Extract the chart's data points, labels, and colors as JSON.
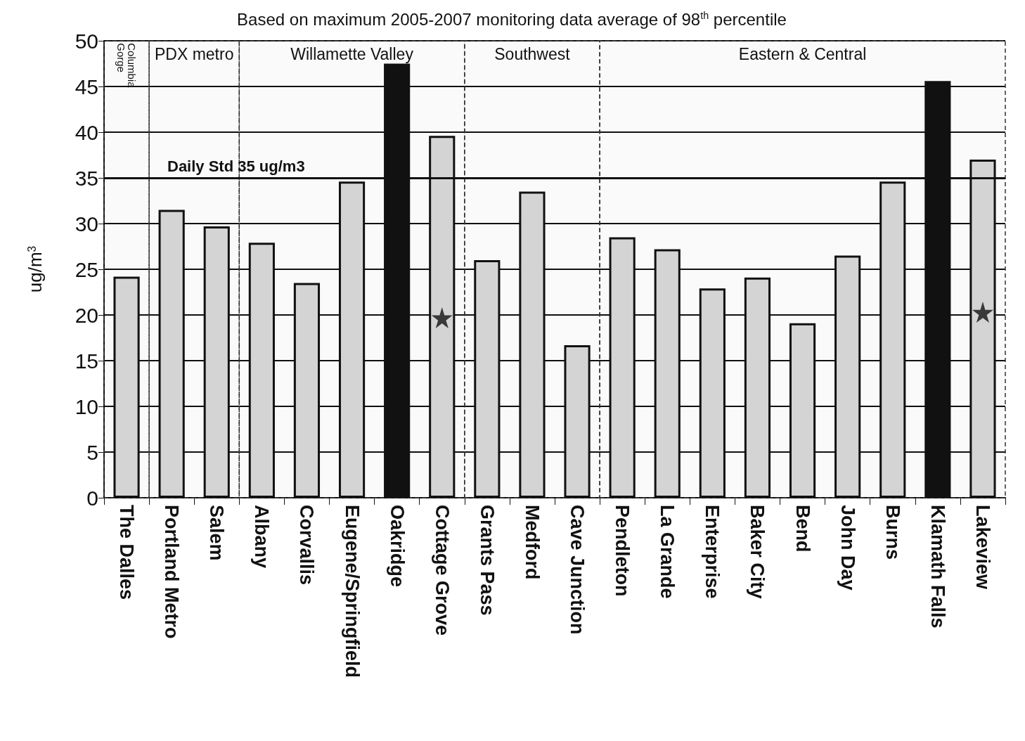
{
  "chart_data": {
    "type": "bar",
    "title": "Based on maximum 2005-2007 monitoring data average of 98$^{th}$ percentile",
    "ylabel": "ug/m$^{3}$",
    "categories": [
      "The Dalles",
      "Portland Metro",
      "Salem",
      "Albany",
      "Corvallis",
      "Eugene/Springfield",
      "Oakridge",
      "Cottage Grove",
      "Grants Pass",
      "Medford",
      "Cave Junction",
      "Pendleton",
      "La Grande",
      "Enterprise",
      "Baker City",
      "Bend",
      "John Day",
      "Burns",
      "Klamath Falls",
      "Lakeview"
    ],
    "series": [
      {
        "values": [
          24.2,
          31.5,
          29.7,
          27.9,
          23.5,
          34.6,
          47.5,
          39.6,
          26,
          33.5,
          16.7,
          28.5,
          27.2,
          22.9,
          24.1,
          19.1,
          26.5,
          34.6,
          45.6,
          37
        ],
        "colors": [
          "#d4d4d4",
          "#d4d4d4",
          "#d4d4d4",
          "#d4d4d4",
          "#d4d4d4",
          "#d4d4d4",
          "#111111",
          "#d4d4d4",
          "#d4d4d4",
          "#d4d4d4",
          "#d4d4d4",
          "#d4d4d4",
          "#d4d4d4",
          "#d4d4d4",
          "#d4d4d4",
          "#d4d4d4",
          "#d4d4d4",
          "#d4d4d4",
          "#111111",
          "#d4d4d4"
        ]
      },
      {
        "type": "scatter",
        "x": [
          "Cottage Grove",
          "Lakeview"
        ],
        "values": [
          19.7,
          20.3
        ],
        "color": "#111111",
        "marker": "star"
      }
    ],
    "ylim": [
      0,
      50
    ],
    "yticks": [
      0,
      5,
      10,
      15,
      20,
      25,
      30,
      35,
      40,
      45,
      50
    ],
    "grid": "y",
    "ref_lines": [
      {
        "axis": "y",
        "value": 35,
        "label": "Daily Std 35 ug/m3",
        "color": "#111111"
      }
    ],
    "bands": [
      {
        "axis": "x",
        "from": "The Dalles",
        "to": "The Dalles",
        "label": "Columbia Gorge"
      },
      {
        "axis": "x",
        "from": "Portland Metro",
        "to": "Salem",
        "label": "PDX metro"
      },
      {
        "axis": "x",
        "from": "Albany",
        "to": "Cottage Grove",
        "label": "Willamette Valley"
      },
      {
        "axis": "x",
        "from": "Grants Pass",
        "to": "Cave Junction",
        "label": "Southwest"
      },
      {
        "axis": "x",
        "from": "Pendleton",
        "to": "Lakeview",
        "label": "Eastern & Central"
      }
    ]
  }
}
